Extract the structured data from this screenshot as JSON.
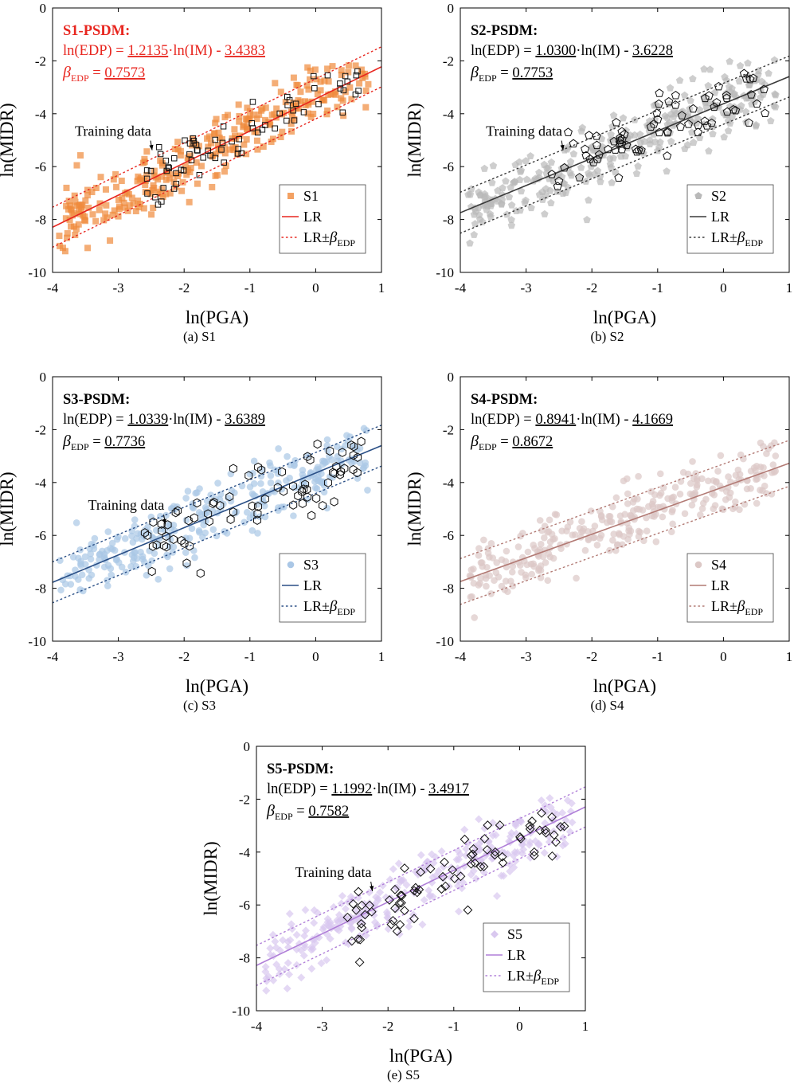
{
  "chart_data": [
    {
      "type": "scatter",
      "panel_label": "(a)",
      "panel_name": "S1",
      "xlabel": "ln(PGA)",
      "ylabel": "ln(MIDR)",
      "xlim": [
        -4,
        1
      ],
      "ylim": [
        -10,
        0
      ],
      "xticks": [
        -4,
        -3,
        -2,
        -1,
        0,
        1
      ],
      "yticks": [
        0,
        -2,
        -4,
        -6,
        -8,
        -10
      ],
      "color": "#f08a3c",
      "line_color": "#e8261f",
      "model": {
        "slope": 1.2135,
        "intercept": -3.4383,
        "beta": 0.7573
      },
      "annotation": {
        "title": "S1-PSDM:",
        "eq_prefix": "ln(EDP) = ",
        "slope_text": "1.2135",
        "eq_mid": "·ln(IM) - ",
        "intercept_text": "3.4383",
        "beta_symbol": "β",
        "beta_sub": "EDP",
        "beta_eq": " = ",
        "beta_text": "0.7573",
        "highlight": true
      },
      "training_label": "Training data",
      "training_arrow_to": [
        -2.45,
        -5.5
      ],
      "training_marker": "square",
      "legend": {
        "scatter": "S1",
        "line": "LR",
        "band": "LR±",
        "band_sym": "β",
        "band_sub": "EDP"
      },
      "grid": false,
      "seed": 11
    },
    {
      "type": "scatter",
      "panel_label": "(b)",
      "panel_name": "S2",
      "xlabel": "ln(PGA)",
      "ylabel": "ln(MIDR)",
      "xlim": [
        -4,
        1
      ],
      "ylim": [
        -10,
        0
      ],
      "xticks": [
        -4,
        -3,
        -2,
        -1,
        0,
        1
      ],
      "yticks": [
        0,
        -2,
        -4,
        -6,
        -8,
        -10
      ],
      "color": "#b9b9b9",
      "line_color": "#3a3a3a",
      "model": {
        "slope": 1.03,
        "intercept": -3.6228,
        "beta": 0.7753
      },
      "annotation": {
        "title": "S2-PSDM:",
        "eq_prefix": "ln(EDP) = ",
        "slope_text": "1.0300",
        "eq_mid": "·ln(IM) - ",
        "intercept_text": "3.6228",
        "beta_symbol": "β",
        "beta_sub": "EDP",
        "beta_eq": " = ",
        "beta_text": "0.7753",
        "highlight": false
      },
      "training_label": "Training data",
      "training_arrow_to": [
        -2.4,
        -5.5
      ],
      "training_marker": "pentagon",
      "legend": {
        "scatter": "S2",
        "line": "LR",
        "band": "LR±",
        "band_sym": "β",
        "band_sub": "EDP"
      },
      "grid": false,
      "seed": 23
    },
    {
      "type": "scatter",
      "panel_label": "(c)",
      "panel_name": "S3",
      "xlabel": "ln(PGA)",
      "ylabel": "ln(MIDR)",
      "xlim": [
        -4,
        1
      ],
      "ylim": [
        -10,
        0
      ],
      "xticks": [
        -4,
        -3,
        -2,
        -1,
        0,
        1
      ],
      "yticks": [
        0,
        -2,
        -4,
        -6,
        -8,
        -10
      ],
      "color": "#aac7e6",
      "line_color": "#2a4f86",
      "model": {
        "slope": 1.0339,
        "intercept": -3.6389,
        "beta": 0.7736
      },
      "annotation": {
        "title": "S3-PSDM:",
        "eq_prefix": "ln(EDP) = ",
        "slope_text": "1.0339",
        "eq_mid": "·ln(IM) - ",
        "intercept_text": "3.6389",
        "beta_symbol": "β",
        "beta_sub": "EDP",
        "beta_eq": " = ",
        "beta_text": "0.7736",
        "highlight": false
      },
      "training_label": "Training data",
      "training_arrow_to": [
        -2.25,
        -5.7
      ],
      "training_marker": "hexagon",
      "legend": {
        "scatter": "S3",
        "line": "LR",
        "band": "LR±",
        "band_sym": "β",
        "band_sub": "EDP"
      },
      "grid": false,
      "seed": 37
    },
    {
      "type": "scatter",
      "panel_label": "(d)",
      "panel_name": "S4",
      "xlabel": "ln(PGA)",
      "ylabel": "ln(MIDR)",
      "xlim": [
        -4,
        1
      ],
      "ylim": [
        -10,
        0
      ],
      "xticks": [
        -4,
        -3,
        -2,
        -1,
        0,
        1
      ],
      "yticks": [
        0,
        -2,
        -4,
        -6,
        -8,
        -10
      ],
      "color": "#dcc8c6",
      "line_color": "#b27a74",
      "model": {
        "slope": 0.8941,
        "intercept": -4.1669,
        "beta": 0.8672
      },
      "annotation": {
        "title": "S4-PSDM:",
        "eq_prefix": "ln(EDP) = ",
        "slope_text": "0.8941",
        "eq_mid": "·ln(IM) - ",
        "intercept_text": "4.1669",
        "beta_symbol": "β",
        "beta_sub": "EDP",
        "beta_eq": " = ",
        "beta_text": "0.8672",
        "highlight": false
      },
      "training_label": "",
      "training_arrow_to": null,
      "training_marker": "none",
      "legend": {
        "scatter": "S4",
        "line": "LR",
        "band": "LR±",
        "band_sym": "β",
        "band_sub": "EDP"
      },
      "grid": false,
      "seed": 41
    },
    {
      "type": "scatter",
      "panel_label": "(e)",
      "panel_name": "S5",
      "xlabel": "ln(PGA)",
      "ylabel": "ln(MIDR)",
      "xlim": [
        -4,
        1
      ],
      "ylim": [
        -10,
        0
      ],
      "xticks": [
        -4,
        -3,
        -2,
        -1,
        0,
        1
      ],
      "yticks": [
        0,
        -2,
        -4,
        -6,
        -8,
        -10
      ],
      "color": "#d9c8ef",
      "line_color": "#b07fd8",
      "model": {
        "slope": 1.1992,
        "intercept": -3.4917,
        "beta": 0.7582
      },
      "annotation": {
        "title": "S5-PSDM:",
        "eq_prefix": "ln(EDP) = ",
        "slope_text": "1.1992",
        "eq_mid": "·ln(IM) - ",
        "intercept_text": "3.4917",
        "beta_symbol": "β",
        "beta_sub": "EDP",
        "beta_eq": " = ",
        "beta_text": "0.7582",
        "highlight": false
      },
      "training_label": "Training data",
      "training_arrow_to": [
        -2.2,
        -5.6
      ],
      "training_marker": "diamond",
      "legend": {
        "scatter": "S5",
        "line": "LR",
        "band": "LR±",
        "band_sym": "β",
        "band_sub": "EDP"
      },
      "grid": false,
      "seed": 53
    }
  ]
}
